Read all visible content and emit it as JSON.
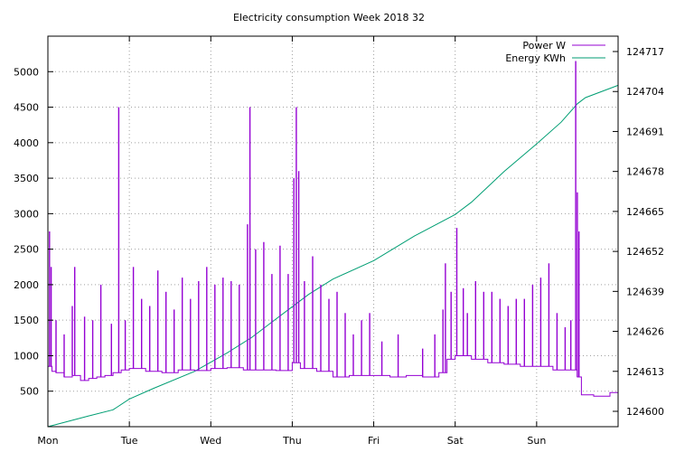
{
  "chart_data": {
    "type": "line",
    "title": "Electricity consumption Week 2018 32",
    "x_categories": [
      "Mon",
      "Tue",
      "Wed",
      "Thu",
      "Fri",
      "Sat",
      "Sun"
    ],
    "xlim_days": [
      0,
      7
    ],
    "y_left": {
      "ticks": [
        500,
        1000,
        1500,
        2000,
        2500,
        3000,
        3500,
        4000,
        4500,
        5000
      ],
      "lim": [
        0,
        5500
      ]
    },
    "y_right": {
      "ticks": [
        124600,
        124613,
        124626,
        124639,
        124652,
        124665,
        124678,
        124691,
        124704,
        124717
      ],
      "lim": [
        124595,
        124722
      ]
    },
    "grid": true,
    "legend_position": "top-right",
    "series": [
      {
        "name": "Power W",
        "axis": "left",
        "color": "#9400d3",
        "baseline_points": [
          [
            0.0,
            850
          ],
          [
            0.05,
            780
          ],
          [
            0.1,
            760
          ],
          [
            0.2,
            700
          ],
          [
            0.3,
            720
          ],
          [
            0.4,
            650
          ],
          [
            0.5,
            680
          ],
          [
            0.6,
            700
          ],
          [
            0.7,
            720
          ],
          [
            0.8,
            760
          ],
          [
            0.9,
            800
          ],
          [
            1.0,
            820
          ],
          [
            1.2,
            780
          ],
          [
            1.4,
            760
          ],
          [
            1.6,
            800
          ],
          [
            1.8,
            790
          ],
          [
            2.0,
            820
          ],
          [
            2.2,
            830
          ],
          [
            2.4,
            800
          ],
          [
            2.6,
            800
          ],
          [
            2.8,
            790
          ],
          [
            3.0,
            900
          ],
          [
            3.1,
            820
          ],
          [
            3.3,
            780
          ],
          [
            3.5,
            700
          ],
          [
            3.7,
            720
          ],
          [
            4.0,
            720
          ],
          [
            4.2,
            700
          ],
          [
            4.4,
            720
          ],
          [
            4.6,
            700
          ],
          [
            4.8,
            760
          ],
          [
            4.9,
            950
          ],
          [
            5.0,
            1000
          ],
          [
            5.2,
            950
          ],
          [
            5.4,
            900
          ],
          [
            5.6,
            880
          ],
          [
            5.8,
            850
          ],
          [
            6.0,
            850
          ],
          [
            6.2,
            800
          ],
          [
            6.4,
            800
          ],
          [
            6.5,
            700
          ],
          [
            6.55,
            450
          ],
          [
            6.7,
            430
          ],
          [
            6.9,
            480
          ],
          [
            7.0,
            600
          ]
        ],
        "spikes": [
          [
            0.02,
            2750
          ],
          [
            0.04,
            2250
          ],
          [
            0.1,
            1500
          ],
          [
            0.2,
            1300
          ],
          [
            0.3,
            1700
          ],
          [
            0.33,
            2250
          ],
          [
            0.45,
            1550
          ],
          [
            0.55,
            1500
          ],
          [
            0.65,
            2000
          ],
          [
            0.78,
            1450
          ],
          [
            0.87,
            4500
          ],
          [
            0.95,
            1500
          ],
          [
            1.05,
            2250
          ],
          [
            1.15,
            1800
          ],
          [
            1.25,
            1700
          ],
          [
            1.35,
            2200
          ],
          [
            1.45,
            1900
          ],
          [
            1.55,
            1650
          ],
          [
            1.65,
            2100
          ],
          [
            1.75,
            1800
          ],
          [
            1.85,
            2050
          ],
          [
            1.95,
            2250
          ],
          [
            2.05,
            2000
          ],
          [
            2.15,
            2100
          ],
          [
            2.25,
            2050
          ],
          [
            2.35,
            2000
          ],
          [
            2.45,
            2850
          ],
          [
            2.48,
            4500
          ],
          [
            2.55,
            2500
          ],
          [
            2.65,
            2600
          ],
          [
            2.75,
            2150
          ],
          [
            2.85,
            2550
          ],
          [
            2.95,
            2150
          ],
          [
            3.02,
            3500
          ],
          [
            3.05,
            4500
          ],
          [
            3.08,
            3600
          ],
          [
            3.15,
            2050
          ],
          [
            3.25,
            2400
          ],
          [
            3.35,
            2000
          ],
          [
            3.45,
            1800
          ],
          [
            3.55,
            1900
          ],
          [
            3.65,
            1600
          ],
          [
            3.75,
            1300
          ],
          [
            3.85,
            1500
          ],
          [
            3.95,
            1600
          ],
          [
            4.1,
            1200
          ],
          [
            4.3,
            1300
          ],
          [
            4.6,
            1100
          ],
          [
            4.75,
            1300
          ],
          [
            4.85,
            1650
          ],
          [
            4.88,
            2300
          ],
          [
            4.95,
            1900
          ],
          [
            5.02,
            2800
          ],
          [
            5.1,
            1950
          ],
          [
            5.15,
            1600
          ],
          [
            5.25,
            2050
          ],
          [
            5.35,
            1900
          ],
          [
            5.45,
            1900
          ],
          [
            5.55,
            1800
          ],
          [
            5.65,
            1700
          ],
          [
            5.75,
            1800
          ],
          [
            5.85,
            1800
          ],
          [
            5.95,
            2000
          ],
          [
            6.05,
            2100
          ],
          [
            6.15,
            2300
          ],
          [
            6.25,
            1600
          ],
          [
            6.35,
            1400
          ],
          [
            6.42,
            1500
          ],
          [
            6.48,
            5150
          ],
          [
            6.5,
            3300
          ],
          [
            6.52,
            2750
          ]
        ]
      },
      {
        "name": "Energy KWh",
        "axis": "right",
        "color": "#009e73",
        "points": [
          [
            0.0,
            124595
          ],
          [
            0.5,
            124598.5
          ],
          [
            0.8,
            124600.5
          ],
          [
            1.0,
            124604
          ],
          [
            1.3,
            124607.5
          ],
          [
            1.8,
            124613
          ],
          [
            2.2,
            124619
          ],
          [
            2.5,
            124624
          ],
          [
            2.8,
            124630
          ],
          [
            3.0,
            124634
          ],
          [
            3.2,
            124638
          ],
          [
            3.5,
            124643
          ],
          [
            4.0,
            124649
          ],
          [
            4.5,
            124657
          ],
          [
            5.0,
            124664
          ],
          [
            5.2,
            124668
          ],
          [
            5.4,
            124673
          ],
          [
            5.6,
            124678
          ],
          [
            6.0,
            124687
          ],
          [
            6.3,
            124694
          ],
          [
            6.5,
            124700
          ],
          [
            6.6,
            124702
          ],
          [
            7.0,
            124706
          ]
        ]
      }
    ]
  }
}
